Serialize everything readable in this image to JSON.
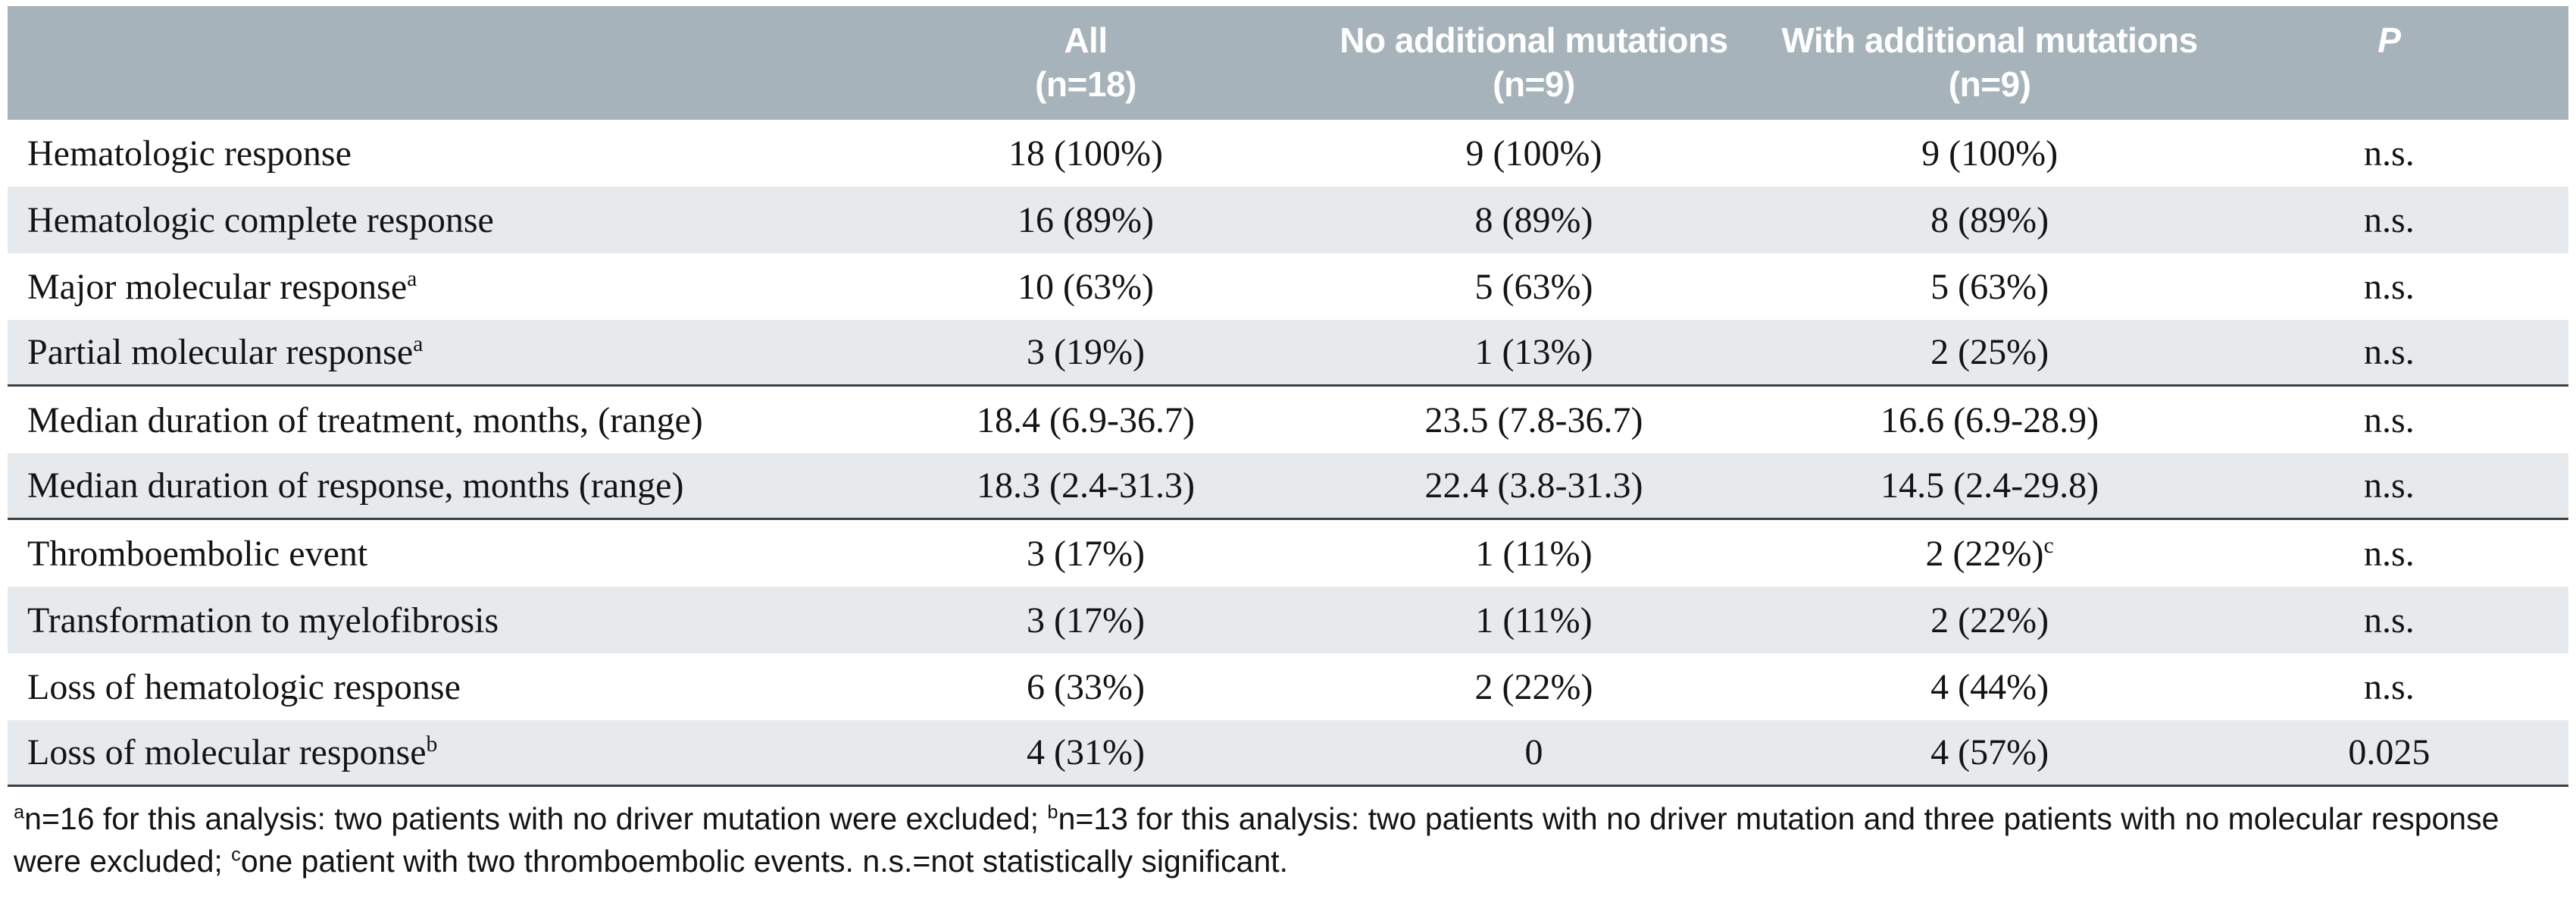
{
  "colors": {
    "header_bg": "#a7b3bb",
    "header_text": "#ffffff",
    "row_shaded": "#e6eaed",
    "border": "#3a3f44",
    "text": "#141414"
  },
  "header": {
    "cols": [
      {
        "line1": "All",
        "line2": "(n=18)"
      },
      {
        "line1": "No additional mutations",
        "line2": "(n=9)"
      },
      {
        "line1": "With additional mutations",
        "line2": "(n=9)"
      },
      {
        "line1": "P",
        "line2": ""
      }
    ]
  },
  "rows": [
    {
      "label": "Hematologic response",
      "label_sup": "",
      "all": "18 (100%)",
      "no_add": "9 (100%)",
      "with_add": "9 (100%)",
      "with_add_sup": "",
      "p": "n.s."
    },
    {
      "label": "Hematologic complete response",
      "label_sup": "",
      "all": "16 (89%)",
      "no_add": "8 (89%)",
      "with_add": "8 (89%)",
      "with_add_sup": "",
      "p": "n.s."
    },
    {
      "label": "Major molecular response",
      "label_sup": "a",
      "all": "10 (63%)",
      "no_add": "5 (63%)",
      "with_add": "5 (63%)",
      "with_add_sup": "",
      "p": "n.s."
    },
    {
      "label": "Partial molecular response",
      "label_sup": "a",
      "all": "3 (19%)",
      "no_add": "1 (13%)",
      "with_add": "2 (25%)",
      "with_add_sup": "",
      "p": "n.s."
    },
    {
      "label": "Median duration of treatment, months, (range)",
      "label_sup": "",
      "all": "18.4 (6.9-36.7)",
      "no_add": "23.5 (7.8-36.7)",
      "with_add": "16.6 (6.9-28.9)",
      "with_add_sup": "",
      "p": "n.s."
    },
    {
      "label": "Median duration of response, months (range)",
      "label_sup": "",
      "all": "18.3 (2.4-31.3)",
      "no_add": "22.4 (3.8-31.3)",
      "with_add": "14.5 (2.4-29.8)",
      "with_add_sup": "",
      "p": "n.s."
    },
    {
      "label": "Thromboembolic event",
      "label_sup": "",
      "all": "3 (17%)",
      "no_add": "1 (11%)",
      "with_add": "2 (22%)",
      "with_add_sup": "c",
      "p": "n.s."
    },
    {
      "label": "Transformation to myelofibrosis",
      "label_sup": "",
      "all": "3 (17%)",
      "no_add": "1 (11%)",
      "with_add": "2 (22%)",
      "with_add_sup": "",
      "p": "n.s."
    },
    {
      "label": "Loss of hematologic response",
      "label_sup": "",
      "all": "6 (33%)",
      "no_add": "2 (22%)",
      "with_add": "4 (44%)",
      "with_add_sup": "",
      "p": "n.s."
    },
    {
      "label": "Loss of molecular response",
      "label_sup": "b",
      "all": "4 (31%)",
      "no_add": "0",
      "with_add": "4 (57%)",
      "with_add_sup": "",
      "p": "0.025"
    }
  ],
  "footnotes": {
    "a_sup": "a",
    "a_text": "n=16 for this analysis: two patients with no driver mutation were excluded; ",
    "b_sup": "b",
    "b_text": "n=13 for this analysis: two patients with no driver mutation and three patients with no molecular response were excluded; ",
    "c_sup": "c",
    "c_text": "one patient with two thromboembolic events. n.s.=not statistically significant."
  }
}
